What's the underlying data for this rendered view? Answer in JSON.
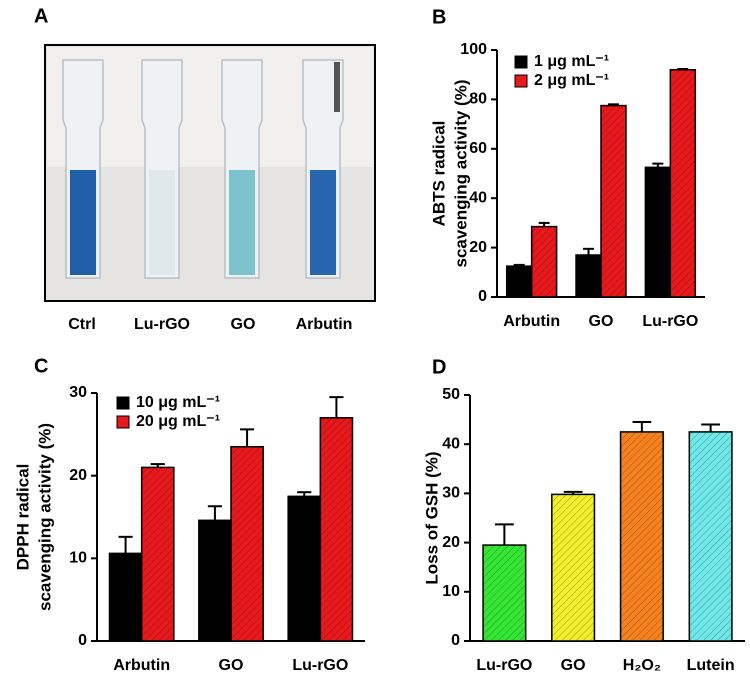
{
  "photo": {
    "panel": "A",
    "samples": [
      "Ctrl",
      "Lu-rGO",
      "GO",
      "Arbutin"
    ]
  },
  "chart_data": [
    {
      "type": "bar",
      "panel": "B",
      "ylabel": [
        "ABTS radical",
        "scavenging activity (%)"
      ],
      "categories": [
        "Arbutin",
        "GO",
        "Lu-rGO"
      ],
      "series": [
        {
          "name": "1 μg mL⁻¹",
          "color": "#000000",
          "values": [
            12.5,
            17,
            52.5
          ],
          "errors": [
            0.5,
            2.5,
            1.5
          ]
        },
        {
          "name": "2 μg mL⁻¹",
          "color": "#e8191c",
          "values": [
            28.5,
            77.5,
            92
          ],
          "errors": [
            1.5,
            0.5,
            0.3
          ]
        }
      ],
      "ylim": [
        0,
        100
      ],
      "yticks": [
        0,
        20,
        40,
        60,
        80,
        100
      ]
    },
    {
      "type": "bar",
      "panel": "C",
      "ylabel": [
        "DPPH radical",
        "scavenging activity (%)"
      ],
      "categories": [
        "Arbutin",
        "GO",
        "Lu-rGO"
      ],
      "series": [
        {
          "name": "10 μg mL⁻¹",
          "color": "#000000",
          "values": [
            10.6,
            14.6,
            17.5
          ],
          "errors": [
            2.0,
            1.7,
            0.5
          ]
        },
        {
          "name": "20 μg mL⁻¹",
          "color": "#e8191c",
          "values": [
            21,
            23.5,
            27
          ],
          "errors": [
            0.4,
            2.1,
            2.5
          ]
        }
      ],
      "ylim": [
        0,
        30
      ],
      "yticks": [
        0,
        10,
        20,
        30
      ]
    },
    {
      "type": "bar",
      "panel": "D",
      "ylabel": [
        "Loss of GSH  (%)"
      ],
      "categories": [
        "Lu-rGO",
        "GO",
        "H₂O₂",
        "Lutein"
      ],
      "series": [
        {
          "colors": [
            "#35e635",
            "#f2ef2e",
            "#f5821f",
            "#6ee8e8"
          ],
          "values": [
            19.5,
            29.8,
            42.5,
            42.5
          ],
          "errors": [
            4.2,
            0.5,
            2.0,
            1.5
          ]
        }
      ],
      "ylim": [
        0,
        50
      ],
      "yticks": [
        0,
        10,
        20,
        30,
        40,
        50
      ]
    }
  ]
}
